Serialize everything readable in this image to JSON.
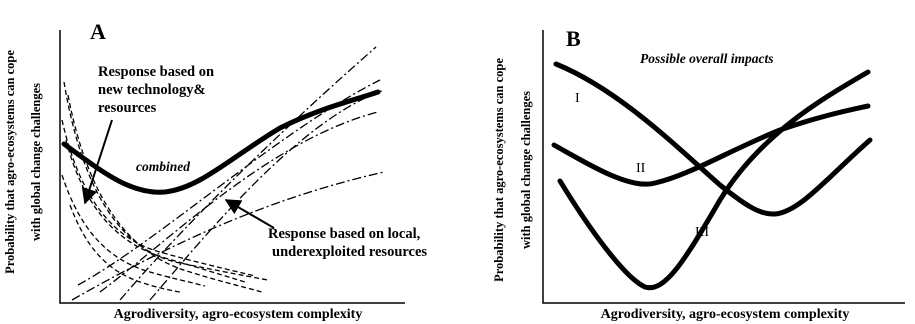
{
  "panel_a": {
    "label": "A",
    "y_axis_label_line1": "Probability that agro-ecosystems can cope",
    "y_axis_label_line2": "with global change challenges",
    "x_axis_label": "Agrodiversity, agro-ecosystem complexity",
    "annotation_new_tech": [
      "Response based on",
      "new technology&",
      "resources"
    ],
    "annotation_combined": "combined",
    "annotation_local": [
      "Response based on local,",
      "underexploited resources"
    ]
  },
  "panel_b": {
    "label": "B",
    "y_axis_label_line1": "Probability that agro-ecosystems can cope",
    "y_axis_label_line2": "with global change challenges",
    "x_axis_label": "Agrodiversity, agro-ecosystem complexity",
    "title": "Possible overall impacts",
    "curve_labels": [
      "I",
      "II",
      "III"
    ]
  }
}
